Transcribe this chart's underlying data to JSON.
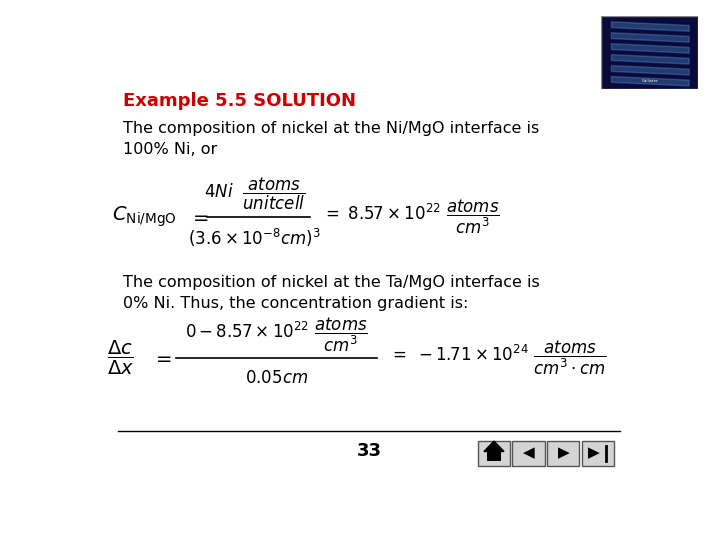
{
  "title": "Example 5.5 SOLUTION",
  "title_color": "#cc0000",
  "background_color": "#ffffff",
  "page_number": "33",
  "para1": "The composition of nickel at the Ni/MgO interface is\n100% Ni, or",
  "para2": "The composition of nickel at the Ta/MgO interface is\n0% Ni. Thus, the concentration gradient is:"
}
